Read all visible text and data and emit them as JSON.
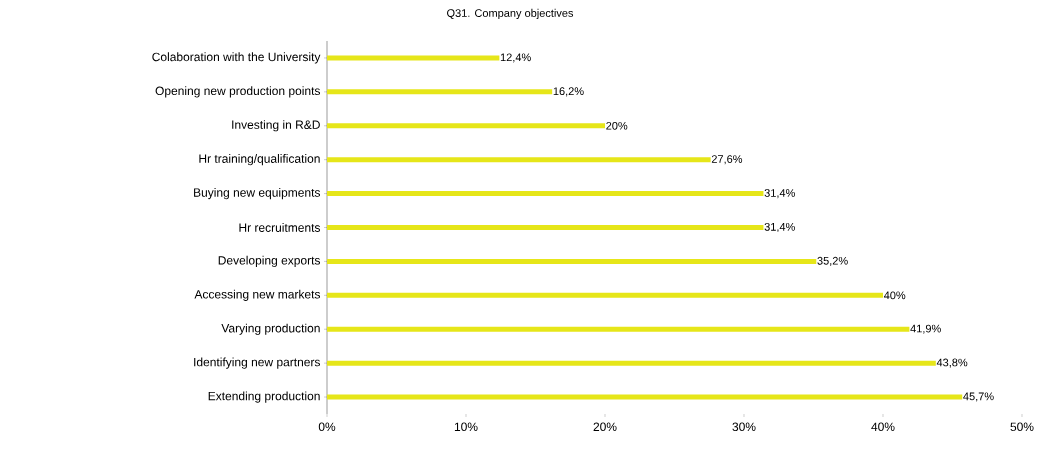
{
  "chart_data": {
    "type": "bar",
    "orientation": "horizontal",
    "title": "Q31. Company objectives",
    "categories": [
      "Colaboration with the University",
      "Opening new production points",
      "Investing in R&D",
      "Hr training/qualification",
      "Buying new equipments",
      "Hr recruitments",
      "Developing exports",
      "Accessing new markets",
      "Varying production",
      "Identifying new partners",
      "Extending production"
    ],
    "values": [
      12.4,
      16.2,
      20,
      27.6,
      31.4,
      31.4,
      35.2,
      40,
      41.9,
      43.8,
      45.7
    ],
    "value_labels": [
      "12,4%",
      "16,2%",
      "20%",
      "27,6%",
      "31,4%",
      "31,4%",
      "35,2%",
      "40%",
      "41,9%",
      "43,8%",
      "45,7%"
    ],
    "color": "#e6e619",
    "xlim": [
      0,
      50
    ],
    "xticks": [
      {
        "value": 0,
        "label": "0%"
      },
      {
        "value": 10,
        "label": "10%"
      },
      {
        "value": 20,
        "label": "20%"
      },
      {
        "value": 30,
        "label": "30%"
      },
      {
        "value": 40,
        "label": "40%"
      },
      {
        "value": 50,
        "label": "50%"
      }
    ]
  }
}
